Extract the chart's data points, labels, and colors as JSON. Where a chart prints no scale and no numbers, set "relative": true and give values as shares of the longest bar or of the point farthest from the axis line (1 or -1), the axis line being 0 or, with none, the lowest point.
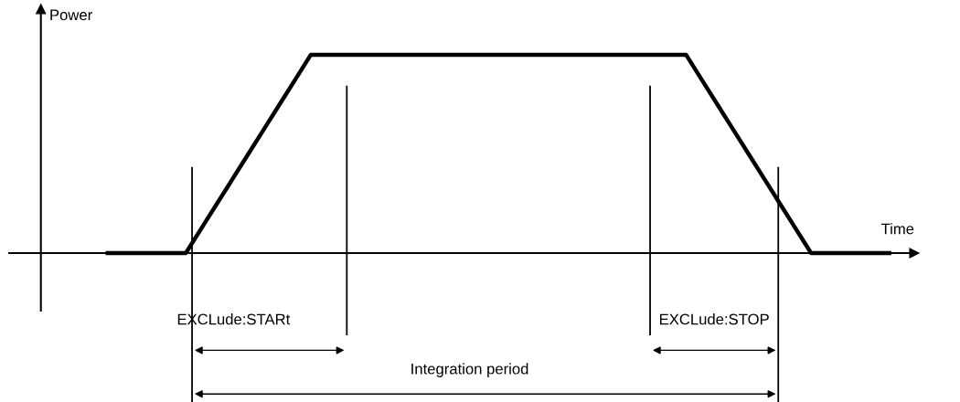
{
  "chart_data": {
    "type": "line",
    "relative": true,
    "xlabel": "Time",
    "ylabel": "Power",
    "categories": [
      null,
      null,
      null,
      null,
      null,
      null,
      null,
      null,
      null,
      null,
      null,
      null,
      null,
      null,
      null,
      null,
      null,
      null,
      null,
      null,
      null,
      null,
      null,
      null,
      null,
      null,
      null,
      null,
      null,
      null,
      null,
      null,
      null,
      null,
      null,
      null,
      null,
      null,
      null,
      null,
      null,
      null,
      null,
      null,
      null,
      null,
      null,
      null,
      null,
      null,
      null
    ],
    "series": [
      {
        "color": "#000000",
        "values": [
          0,
          0,
          0,
          0,
          0,
          0,
          0.125,
          0.25,
          0.375,
          0.5,
          0.625,
          0.75,
          0.875,
          1,
          1,
          1,
          1,
          1,
          1,
          1,
          1,
          1,
          1,
          1,
          1,
          1,
          1,
          1,
          1,
          1,
          1,
          1,
          1,
          1,
          1,
          1,
          1,
          1,
          0.875,
          0.75,
          0.625,
          0.5,
          0.375,
          0.25,
          0.125,
          0,
          0,
          0,
          0,
          0,
          0
        ]
      }
    ],
    "legend": false,
    "marker": "none",
    "line_style": "solid",
    "annotations": [
      "EXCLude:STARt",
      "EXCLude:STOP",
      "Integration period"
    ]
  }
}
